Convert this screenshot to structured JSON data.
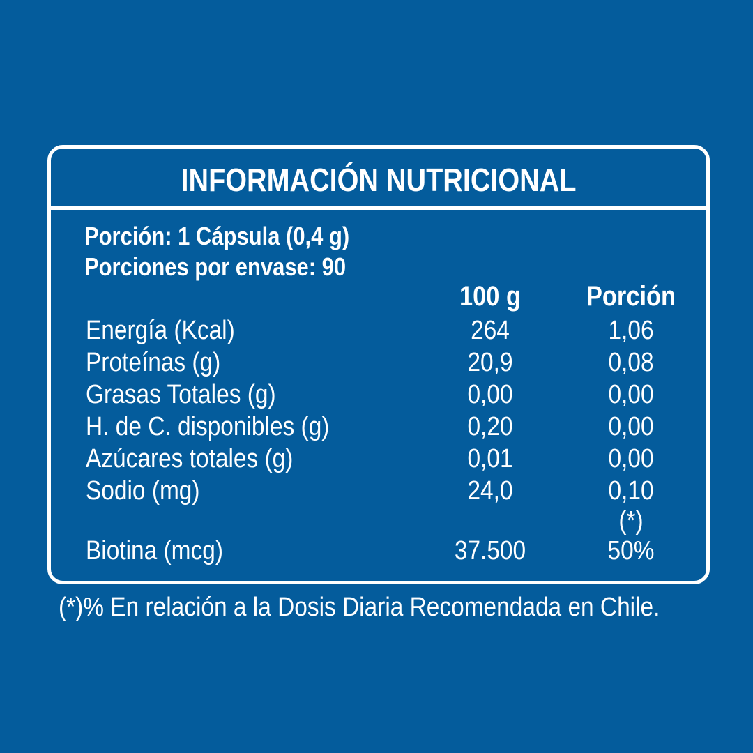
{
  "table": {
    "title": "INFORMACIÓN NUTRICIONAL",
    "serving_size": "Porción: 1 Cápsula (0,4 g)",
    "servings_per_container": "Porciones por envase: 90",
    "column_headers": [
      "100 g",
      "Porción"
    ],
    "rows": [
      {
        "label": "Energía (Kcal)",
        "per_100g": "264",
        "per_serving": "1,06"
      },
      {
        "label": "Proteínas (g)",
        "per_100g": "20,9",
        "per_serving": "0,08"
      },
      {
        "label": "Grasas Totales (g)",
        "per_100g": "0,00",
        "per_serving": "0,00"
      },
      {
        "label": "H. de C. disponibles (g)",
        "per_100g": "0,20",
        "per_serving": "0,00"
      },
      {
        "label": "Azúcares totales (g)",
        "per_100g": "0,01",
        "per_serving": "0,00"
      },
      {
        "label": "Sodio (mg)",
        "per_100g": "24,0",
        "per_serving": "0,10"
      }
    ],
    "percent_marker": "(*)",
    "extra_row": {
      "label": "Biotina (mcg)",
      "per_100g": "37.500",
      "per_serving": "50%"
    }
  },
  "footnote": "(*)% En relación a la Dosis Diaria Recomendada en Chile.",
  "colors": {
    "background": "#045C9C",
    "text": "#FFFFFF",
    "border": "#FFFFFF"
  }
}
